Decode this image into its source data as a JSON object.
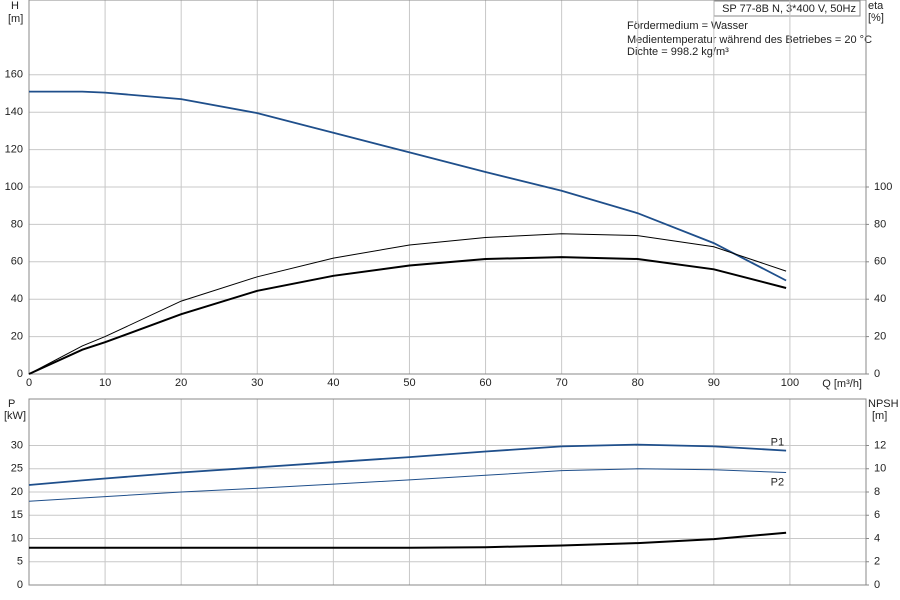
{
  "header": "SP 77-8B N, 3*400 V, 50Hz",
  "annotations": [
    "Fördermedium = Wasser",
    "Medientemperatur während des Betriebes = 20 °C",
    "Dichte = 998.2 kg/m³"
  ],
  "chart_data": [
    {
      "type": "line",
      "y_label": "H",
      "y_unit": "[m]",
      "y2_label": "eta",
      "y2_unit": "[%]",
      "x_label": "Q [m³/h]",
      "x": [
        0,
        7,
        10,
        20,
        30,
        40,
        50,
        60,
        70,
        80,
        90,
        99.5
      ],
      "xlim": [
        0,
        110
      ],
      "xticks": [
        0,
        10,
        20,
        30,
        40,
        50,
        60,
        70,
        80,
        90,
        100
      ],
      "ylim": [
        0,
        200
      ],
      "yticks": [
        0,
        20,
        40,
        60,
        80,
        100,
        120,
        140,
        160
      ],
      "y2lim": [
        0,
        200
      ],
      "y2ticks": [
        0,
        20,
        40,
        60,
        80,
        100
      ],
      "grid": true,
      "series": [
        {
          "color": "#1f4f8b",
          "values": [
            151,
            151,
            150.5,
            147,
            139.5,
            129,
            118.5,
            108,
            98,
            86,
            70,
            50
          ]
        },
        {
          "color": "#000000",
          "axis": "y2",
          "values": [
            0,
            15,
            20,
            39,
            52,
            62,
            69,
            73,
            75,
            74,
            68,
            55
          ]
        },
        {
          "color": "#000000",
          "axis": "y2",
          "values": [
            0,
            13,
            17,
            32,
            44.5,
            52.5,
            58,
            61.5,
            62.5,
            61.5,
            56,
            46
          ]
        }
      ]
    },
    {
      "type": "line",
      "y_label": "P",
      "y_unit": "[kW]",
      "y2_label": "NPSH",
      "y2_unit": "[m]",
      "x": [
        0,
        7,
        10,
        20,
        30,
        40,
        50,
        60,
        70,
        80,
        90,
        99.5
      ],
      "xlim": [
        0,
        110
      ],
      "ylim": [
        0,
        40
      ],
      "yticks": [
        0,
        5,
        10,
        15,
        20,
        25,
        30
      ],
      "y2lim": [
        0,
        16
      ],
      "y2ticks": [
        0,
        2,
        4,
        6,
        8,
        10,
        12
      ],
      "grid": true,
      "series": [
        {
          "name": "P1",
          "color": "#1f4f8b",
          "values": [
            21.5,
            22.5,
            22.9,
            24.2,
            25.3,
            26.4,
            27.5,
            28.7,
            29.8,
            30.2,
            29.8,
            28.9
          ]
        },
        {
          "name": "P2",
          "color": "#1f4f8b",
          "values": [
            18,
            18.7,
            19,
            20,
            20.8,
            21.7,
            22.6,
            23.6,
            24.6,
            25,
            24.8,
            24.2
          ]
        },
        {
          "color": "#000000",
          "axis": "y2",
          "values": [
            3.2,
            3.2,
            3.2,
            3.2,
            3.2,
            3.2,
            3.2,
            3.25,
            3.4,
            3.6,
            3.95,
            4.5
          ]
        }
      ]
    }
  ]
}
